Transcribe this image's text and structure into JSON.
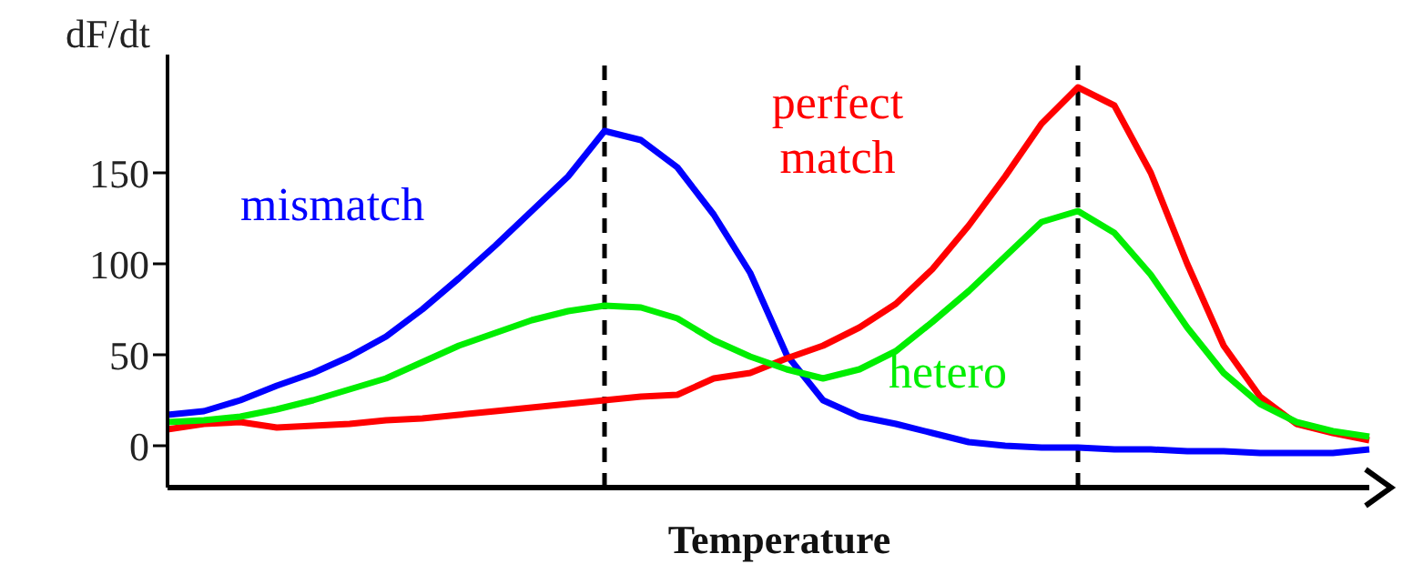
{
  "chart_data": {
    "type": "line",
    "xlabel": "Temperature",
    "ylabel": "dF/dt",
    "categories": [
      null,
      null,
      null,
      null,
      null,
      null,
      null,
      null,
      null,
      null,
      null,
      null,
      null,
      null,
      null,
      null,
      null,
      null,
      null,
      null,
      null,
      null,
      null,
      null,
      null,
      null,
      null,
      null,
      null,
      null,
      null,
      null,
      null,
      null
    ],
    "ylim": [
      -23,
      215
    ],
    "yticks": [
      0,
      50,
      100,
      150
    ],
    "grid": false,
    "marker": "none",
    "line_style": "solid",
    "series": [
      {
        "name": "mismatch",
        "color": "#0000ff",
        "values": [
          17,
          19,
          25,
          33,
          40,
          49,
          60,
          75,
          92,
          110,
          129,
          148,
          173,
          168,
          153,
          127,
          95,
          50,
          25,
          16,
          12,
          7,
          2,
          0,
          -1,
          -1,
          -2,
          -2,
          -3,
          -3,
          -4,
          -4,
          -4,
          -2
        ]
      },
      {
        "name": "perfect match",
        "color": "#ff0000",
        "values": [
          9,
          12,
          13,
          10,
          11,
          12,
          14,
          15,
          17,
          19,
          21,
          23,
          25,
          27,
          28,
          37,
          40,
          48,
          55,
          65,
          78,
          97,
          121,
          148,
          177,
          197,
          187,
          150,
          100,
          55,
          27,
          12,
          7,
          3
        ]
      },
      {
        "name": "hetero",
        "color": "#00ee00",
        "values": [
          13,
          14,
          16,
          20,
          25,
          31,
          37,
          46,
          55,
          62,
          69,
          74,
          77,
          76,
          70,
          58,
          49,
          42,
          37,
          42,
          52,
          68,
          85,
          104,
          123,
          129,
          117,
          94,
          65,
          40,
          23,
          13,
          8,
          5
        ]
      }
    ]
  }
}
